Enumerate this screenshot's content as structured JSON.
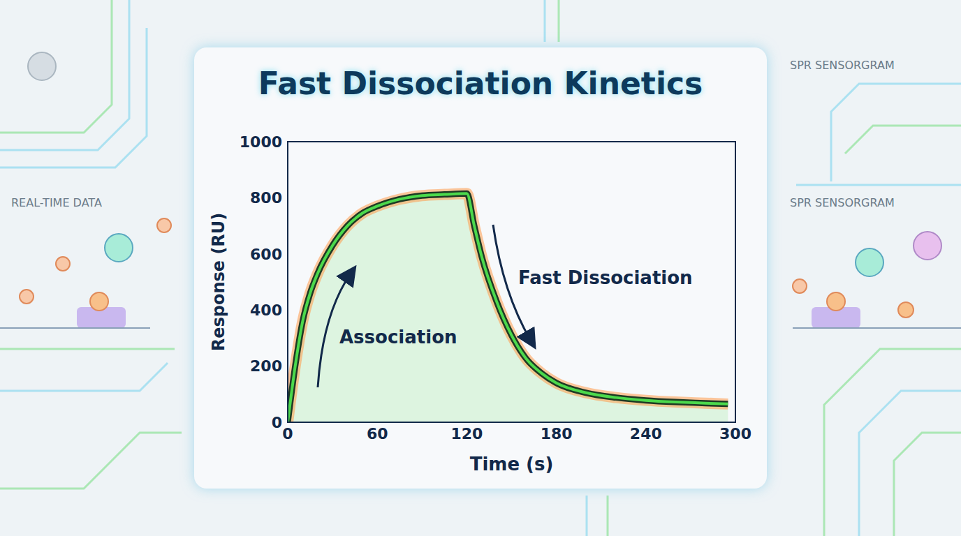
{
  "chart_data": {
    "type": "line",
    "title": "Fast Dissociation Kinetics",
    "x_label": "Time (s)",
    "y_label": "Response (RU)",
    "x": [
      0,
      5,
      10,
      15,
      20,
      30,
      40,
      50,
      60,
      75,
      90,
      105,
      120,
      125,
      130,
      140,
      150,
      160,
      170,
      180,
      200,
      220,
      240,
      260,
      280,
      295
    ],
    "values": [
      0,
      200,
      360,
      460,
      530,
      630,
      700,
      745,
      770,
      795,
      808,
      812,
      815,
      700,
      590,
      430,
      310,
      225,
      175,
      140,
      105,
      88,
      78,
      72,
      68,
      65
    ],
    "color": "#4cd94c",
    "xlim": [
      0,
      300
    ],
    "xticks": [
      0,
      60,
      120,
      180,
      240,
      300
    ],
    "ylim": [
      0,
      1000
    ],
    "yticks": [
      0,
      200,
      400,
      600,
      800,
      1000
    ],
    "grid": false,
    "annotations": [
      "Association",
      "Fast Dissociation",
      "REAL-TIME DATA",
      "SPR SENSORGRAM",
      "SPR SENSORGRAM"
    ]
  }
}
